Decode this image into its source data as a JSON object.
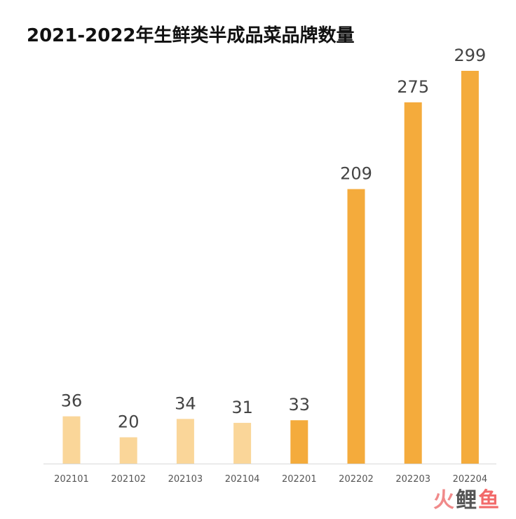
{
  "chart_data": {
    "type": "bar",
    "title": "2021-2022年生鲜类半成品菜品牌数量",
    "categories": [
      "202101",
      "202102",
      "202103",
      "202104",
      "202201",
      "202202",
      "202203",
      "202204"
    ],
    "values": [
      36,
      20,
      34,
      31,
      33,
      209,
      275,
      299
    ],
    "colors": [
      "#fad699",
      "#fad699",
      "#fad699",
      "#fad699",
      "#f4ab3c",
      "#f4ab3c",
      "#f4ab3c",
      "#f4ab3c"
    ],
    "ylim": [
      0,
      299
    ],
    "grid": false,
    "xlabel": "",
    "ylabel": ""
  },
  "watermark": {
    "part1": "火",
    "part2": "鲤",
    "part3": "鱼"
  }
}
